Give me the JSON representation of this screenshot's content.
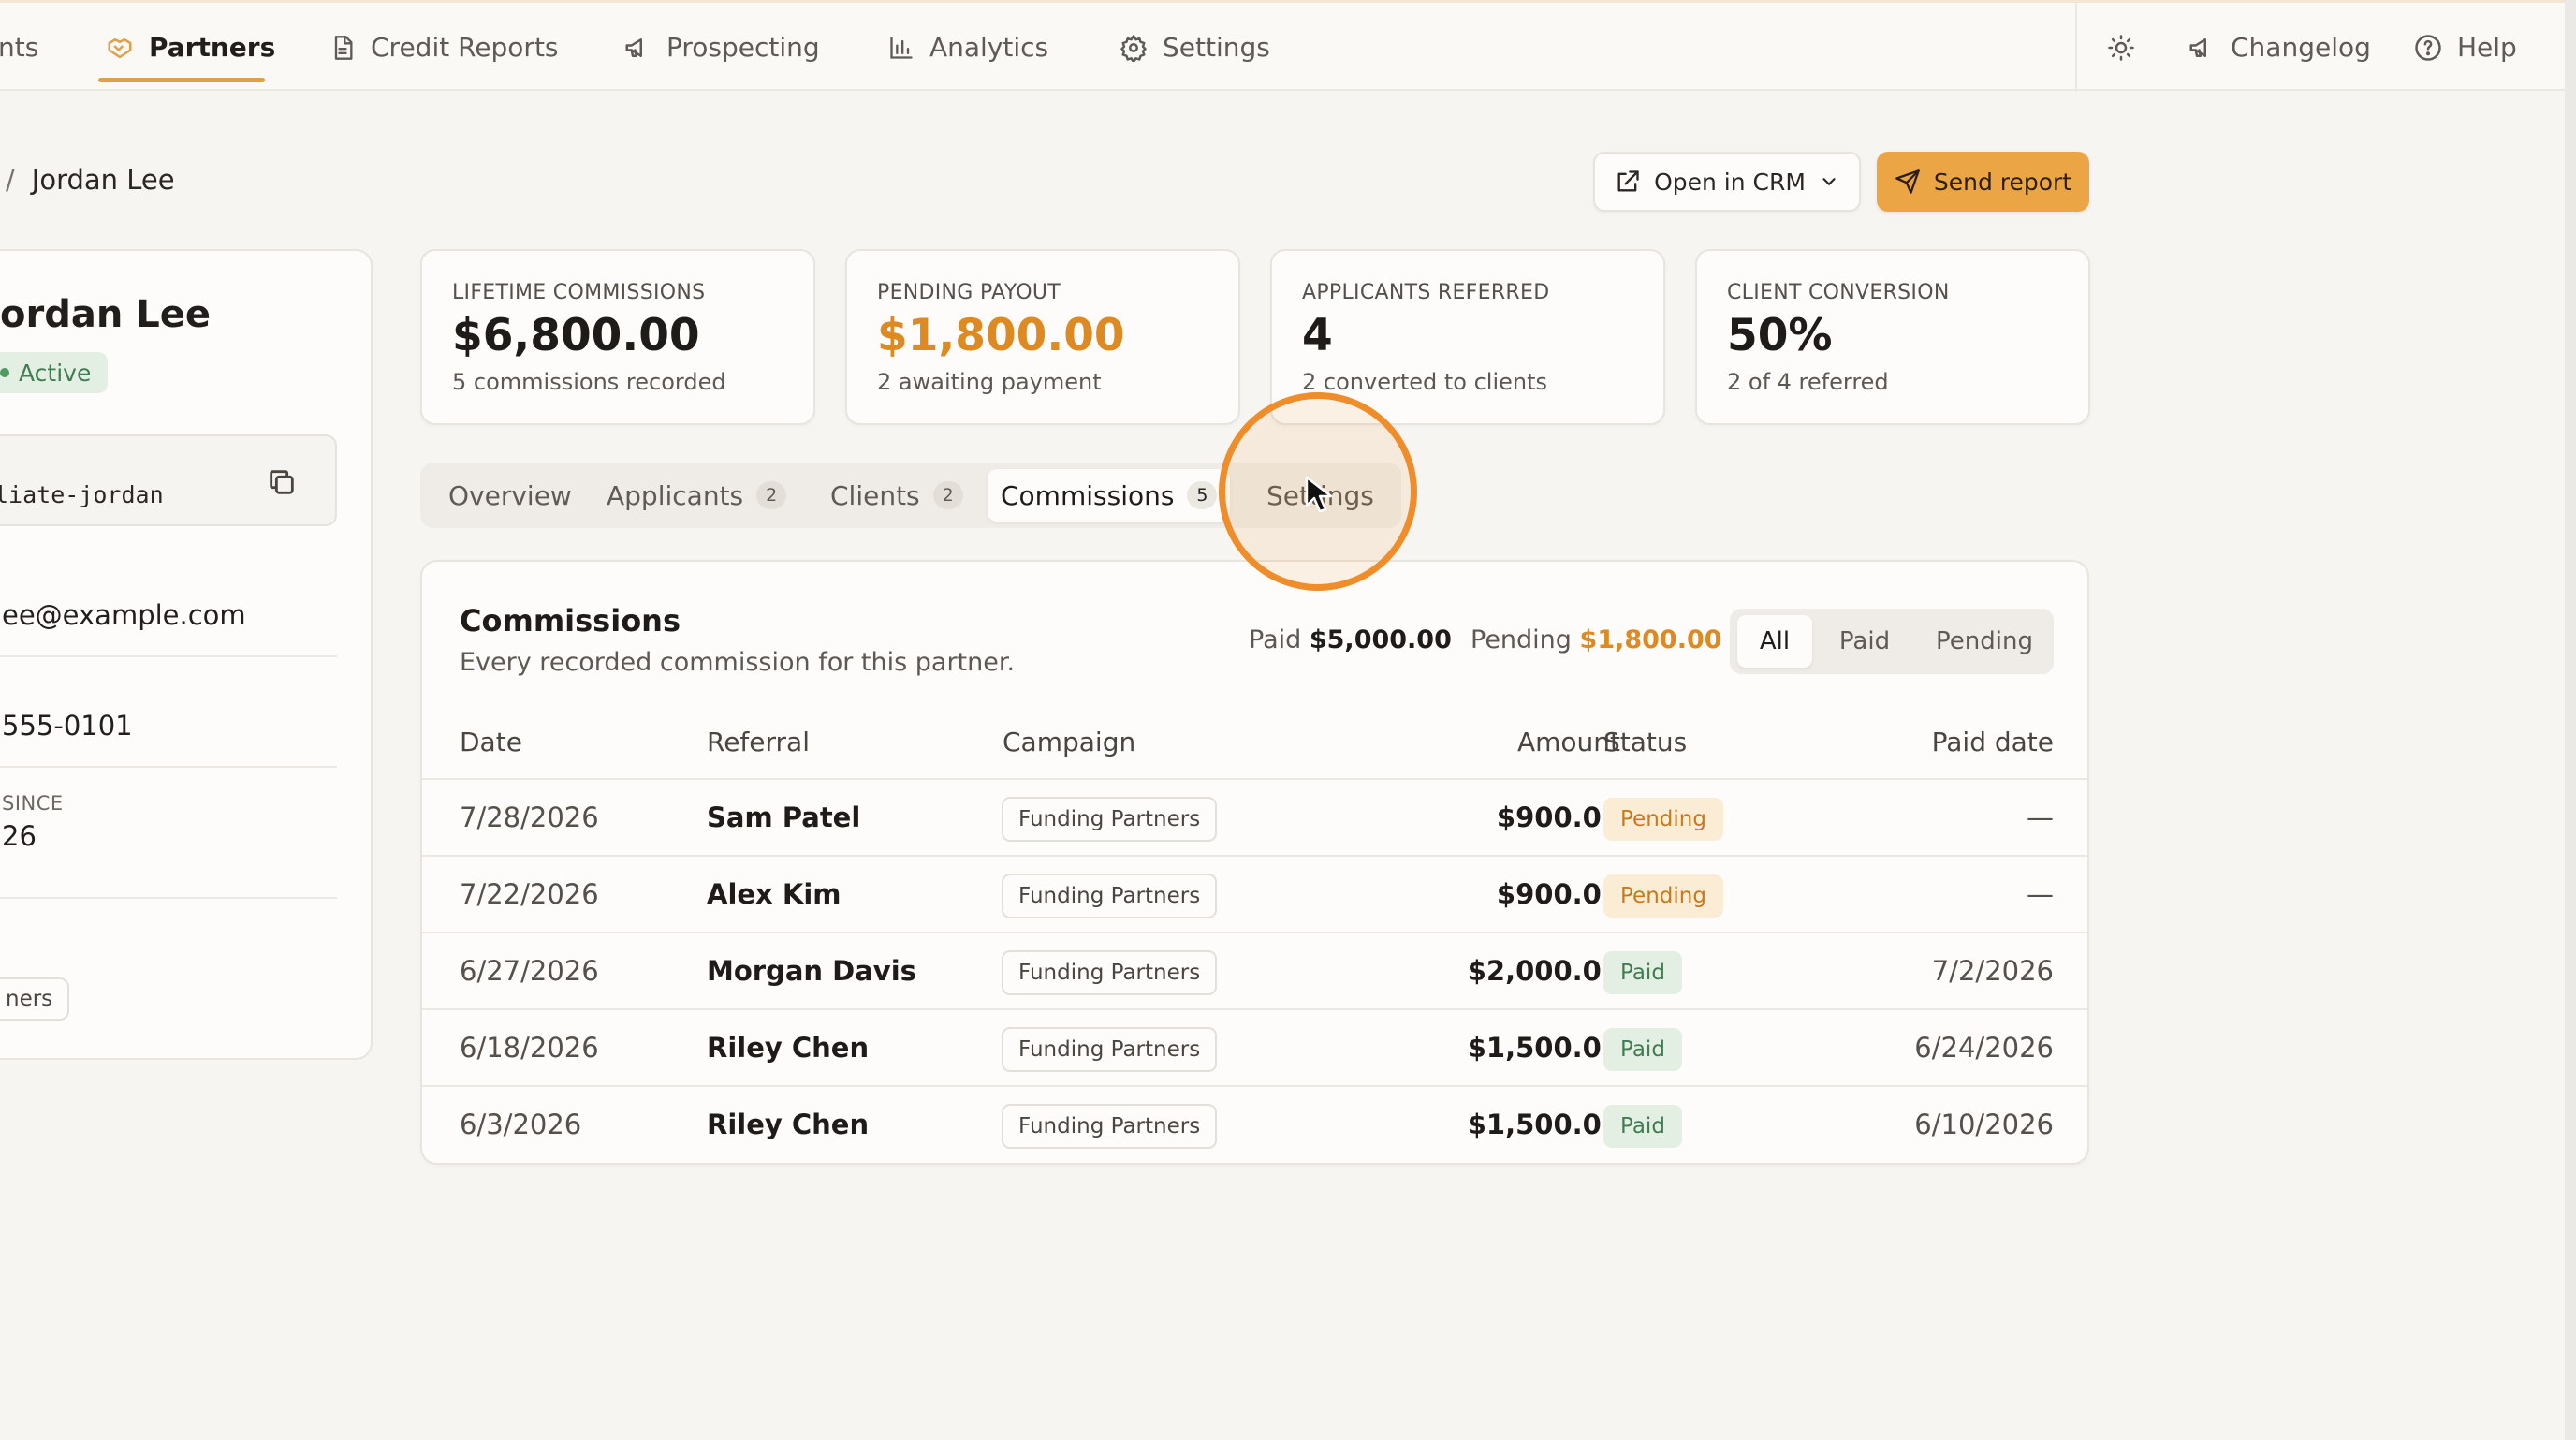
{
  "nav": {
    "items": [
      {
        "label": "nts",
        "icon": "clients-icon"
      },
      {
        "label": "Partners",
        "icon": "handshake-icon",
        "active": true
      },
      {
        "label": "Credit Reports",
        "icon": "document-icon"
      },
      {
        "label": "Prospecting",
        "icon": "megaphone-icon"
      },
      {
        "label": "Analytics",
        "icon": "bar-chart-icon"
      },
      {
        "label": "Settings",
        "icon": "gear-icon"
      }
    ],
    "right": {
      "theme_icon": "sun-icon",
      "changelog_label": "Changelog",
      "help_label": "Help"
    }
  },
  "breadcrumb": {
    "separator": "/",
    "current": "Jordan Lee"
  },
  "actions": {
    "open_crm_label": "Open in CRM",
    "send_report_label": "Send report"
  },
  "profile": {
    "name": "ordan Lee",
    "status": "Active",
    "code": "liate-jordan",
    "email": "ee@example.com",
    "phone": "555-0101",
    "since_label": "SINCE",
    "since_value": "26",
    "campaign_tag": "ners"
  },
  "stats": [
    {
      "label": "LIFETIME COMMISSIONS",
      "value": "$6,800.00",
      "sub": "5 commissions recorded"
    },
    {
      "label": "PENDING PAYOUT",
      "value": "$1,800.00",
      "sub": "2 awaiting payment"
    },
    {
      "label": "APPLICANTS REFERRED",
      "value": "4",
      "sub": "2 converted to clients"
    },
    {
      "label": "CLIENT CONVERSION",
      "value": "50%",
      "sub": "2 of 4 referred"
    }
  ],
  "tabs": [
    {
      "label": "Overview",
      "count": ""
    },
    {
      "label": "Applicants",
      "count": "2"
    },
    {
      "label": "Clients",
      "count": "2"
    },
    {
      "label": "Commissions",
      "count": "5",
      "active": true
    },
    {
      "label": "Settings",
      "count": ""
    }
  ],
  "commissions": {
    "title": "Commissions",
    "subtitle": "Every recorded commission for this partner.",
    "paid_label": "Paid",
    "paid_value": "$5,000.00",
    "pending_label": "Pending",
    "pending_value": "$1,800.00",
    "filters": [
      "All",
      "Paid",
      "Pending"
    ],
    "active_filter": "All",
    "columns": [
      "Date",
      "Referral",
      "Campaign",
      "Amount",
      "Status",
      "Paid date"
    ],
    "rows": [
      {
        "date": "7/28/2026",
        "referral": "Sam Patel",
        "campaign": "Funding Partners",
        "amount": "$900.00",
        "status": "Pending",
        "paid_date": "—"
      },
      {
        "date": "7/22/2026",
        "referral": "Alex Kim",
        "campaign": "Funding Partners",
        "amount": "$900.00",
        "status": "Pending",
        "paid_date": "—"
      },
      {
        "date": "6/27/2026",
        "referral": "Morgan Davis",
        "campaign": "Funding Partners",
        "amount": "$2,000.00",
        "status": "Paid",
        "paid_date": "7/2/2026"
      },
      {
        "date": "6/18/2026",
        "referral": "Riley Chen",
        "campaign": "Funding Partners",
        "amount": "$1,500.00",
        "status": "Paid",
        "paid_date": "6/24/2026"
      },
      {
        "date": "6/3/2026",
        "referral": "Riley Chen",
        "campaign": "Funding Partners",
        "amount": "$1,500.00",
        "status": "Paid",
        "paid_date": "6/10/2026"
      }
    ]
  },
  "colors": {
    "accent": "#eca545",
    "pending_text": "#dd8a22",
    "paid_green": "#3f7d52",
    "cursor_ring": "#ef8d2b"
  }
}
